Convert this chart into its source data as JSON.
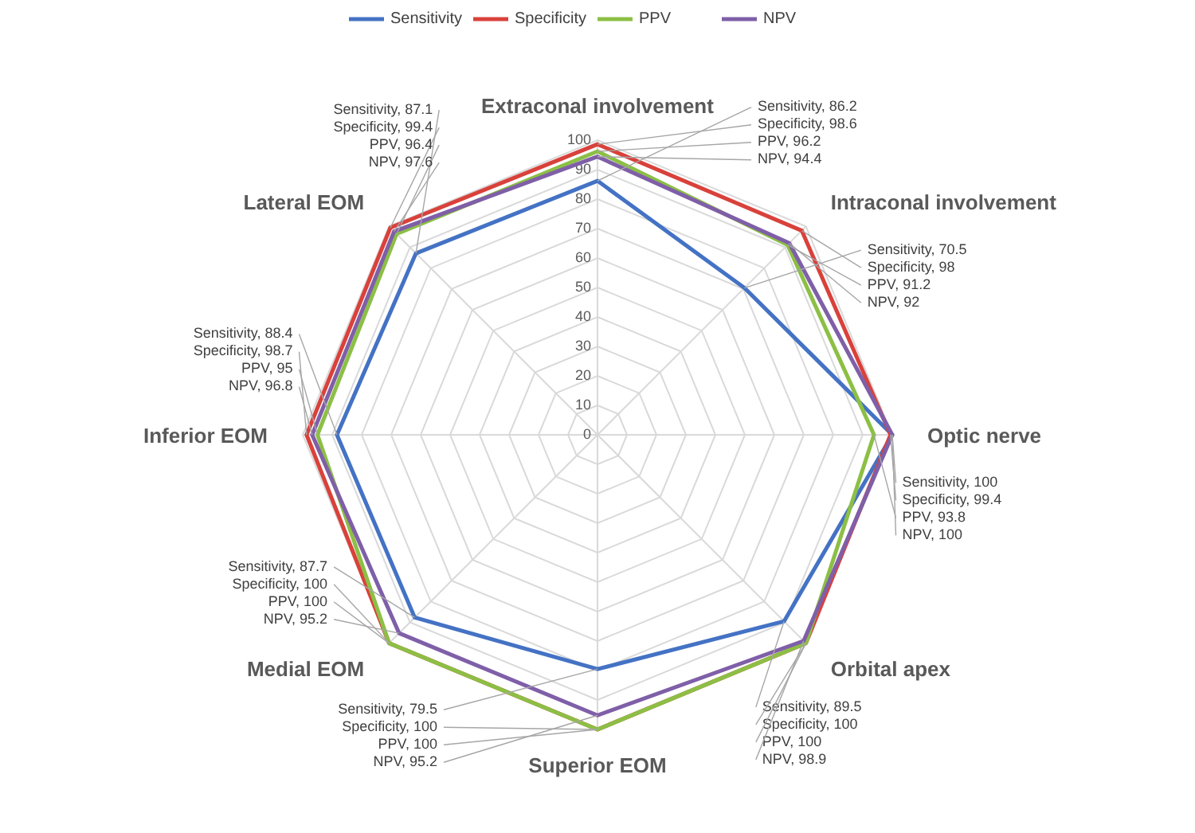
{
  "chart_data": {
    "type": "radar",
    "categories": [
      "Extraconal involvement",
      "Intraconal involvement",
      "Optic nerve",
      "Orbital apex",
      "Superior EOM",
      "Medial EOM",
      "Inferior EOM",
      "Lateral EOM"
    ],
    "series": [
      {
        "name": "Sensitivity",
        "color": "#4472c4",
        "values": [
          86.2,
          70.5,
          100,
          89.5,
          79.5,
          87.7,
          88.4,
          87.1
        ],
        "value_labels": [
          "Sensitivity, 86.2",
          "Sensitivity, 70.5",
          "Sensitivity, 100",
          "Sensitivity, 89.5",
          "Sensitivity, 79.5",
          "Sensitivity, 87.7",
          "Sensitivity, 88.4",
          "Sensitivity, 87.1"
        ]
      },
      {
        "name": "Specificity",
        "color": "#d9413b",
        "values": [
          98.6,
          98,
          99.4,
          100,
          100,
          100,
          98.7,
          99.4
        ],
        "value_labels": [
          "Specificity, 98.6",
          "Specificity, 98",
          "Specificity, 99.4",
          "Specificity, 100",
          "Specificity, 100",
          "Specificity, 100",
          "Specificity, 98.7",
          "Specificity, 99.4"
        ]
      },
      {
        "name": "PPV",
        "color": "#8cbf45",
        "values": [
          96.2,
          91.2,
          93.8,
          100,
          100,
          100,
          95,
          96.4
        ],
        "value_labels": [
          "PPV, 96.2",
          "PPV, 91.2",
          "PPV, 93.8",
          "PPV, 100",
          "PPV, 100",
          "PPV, 100",
          "PPV, 95",
          "PPV, 96.4"
        ]
      },
      {
        "name": "NPV",
        "color": "#7f5fa8",
        "values": [
          94.4,
          92,
          100,
          98.9,
          95.2,
          95.2,
          96.8,
          97.6
        ],
        "value_labels": [
          "NPV, 94.4",
          "NPV, 92",
          "NPV, 100",
          "NPV, 98.9",
          "NPV, 95.2",
          "NPV, 95.2",
          "NPV, 96.8",
          "NPV, 97.6"
        ]
      }
    ],
    "ylim": [
      0,
      100
    ],
    "yticks": [
      0,
      10,
      20,
      30,
      40,
      50,
      60,
      70,
      80,
      90,
      100
    ],
    "grid": true,
    "legend": "top",
    "marker": "none",
    "line_style": "solid"
  }
}
